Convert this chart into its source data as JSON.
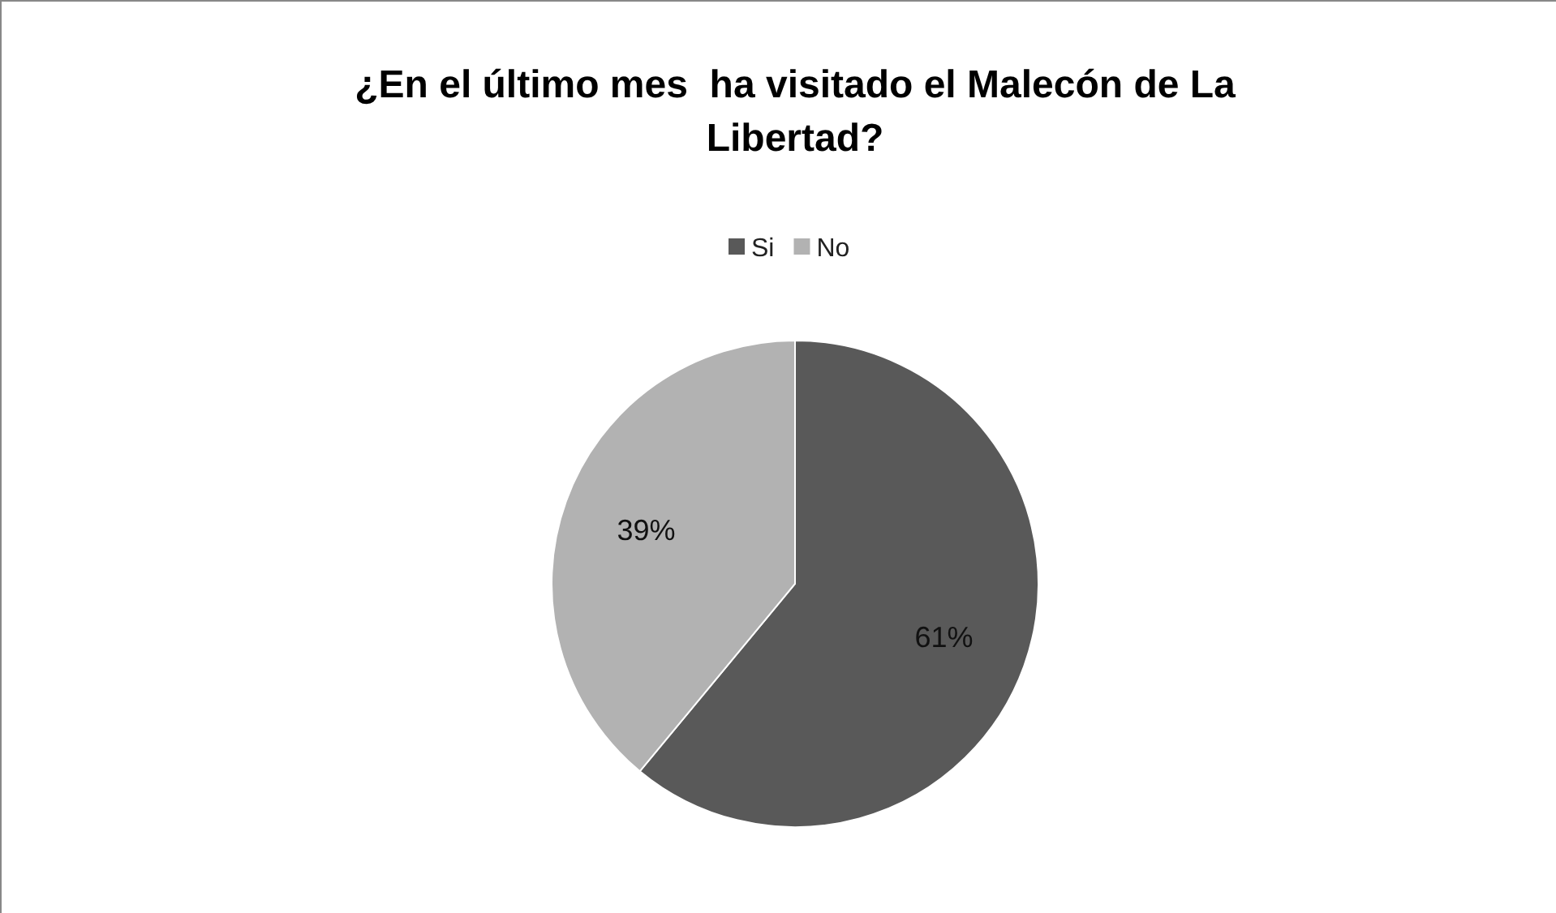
{
  "chart_data": {
    "type": "pie",
    "title": "¿En el último mes  ha visitado el Malecón de La Libertad?",
    "categories": [
      "Si",
      "No"
    ],
    "values": [
      61,
      39
    ],
    "value_labels": [
      "61%",
      "39%"
    ],
    "colors": [
      "#595959",
      "#b2b2b2"
    ],
    "legend": "top"
  }
}
